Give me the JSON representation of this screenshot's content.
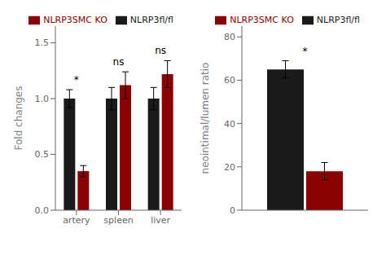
{
  "chart_data": [
    {
      "type": "bar",
      "ylabel": "Fold changes",
      "categories": [
        "artery",
        "spleen",
        "liver"
      ],
      "series": [
        {
          "name": "NLRP3fl/fl",
          "color": "#1a1a1a",
          "values": [
            1.0,
            1.0,
            1.0
          ],
          "errors": [
            0.08,
            0.1,
            0.1
          ]
        },
        {
          "name": "NLRP3SMC KO",
          "color": "#8b0000",
          "values": [
            0.35,
            1.12,
            1.22
          ],
          "errors": [
            0.05,
            0.12,
            0.12
          ]
        }
      ],
      "ylim": [
        0,
        1.65
      ],
      "yticks": [
        {
          "value": 0.0,
          "label": "0.0"
        },
        {
          "value": 0.5,
          "label": "0.5"
        },
        {
          "value": 1.0,
          "label": "1.0"
        },
        {
          "value": 1.5,
          "label": "1.5"
        }
      ],
      "annotations": [
        "*",
        "ns",
        "ns"
      ],
      "legend": "upper right"
    },
    {
      "type": "bar",
      "ylabel": "neointimal/lumen ratio",
      "categories": [
        null
      ],
      "series": [
        {
          "name": "NLRP3fl/fl",
          "color": "#1a1a1a",
          "values": [
            65
          ],
          "errors": [
            4
          ]
        },
        {
          "name": "NLRP3SMC KO",
          "color": "#8b0000",
          "values": [
            18
          ],
          "errors": [
            4
          ]
        }
      ],
      "ylim": [
        0,
        85
      ],
      "yticks": [
        0,
        20,
        40,
        60,
        80
      ],
      "annotations": [
        "*"
      ],
      "legend": "upper right",
      "tick_labels": "y"
    }
  ]
}
